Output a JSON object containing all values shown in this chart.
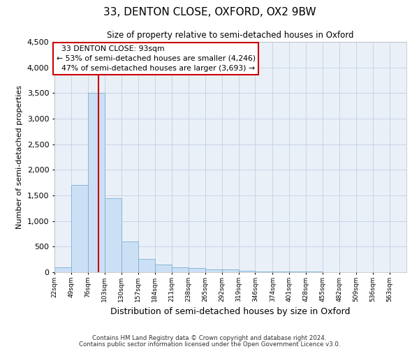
{
  "title1": "33, DENTON CLOSE, OXFORD, OX2 9BW",
  "title2": "Size of property relative to semi-detached houses in Oxford",
  "xlabel": "Distribution of semi-detached houses by size in Oxford",
  "ylabel": "Number of semi-detached properties",
  "property_label": "33 DENTON CLOSE: 93sqm",
  "pct_smaller": 53,
  "pct_larger": 47,
  "n_smaller": 4246,
  "n_larger": 3693,
  "bin_labels": [
    "22sqm",
    "49sqm",
    "76sqm",
    "103sqm",
    "130sqm",
    "157sqm",
    "184sqm",
    "211sqm",
    "238sqm",
    "265sqm",
    "292sqm",
    "319sqm",
    "346sqm",
    "374sqm",
    "401sqm",
    "428sqm",
    "455sqm",
    "482sqm",
    "509sqm",
    "536sqm",
    "563sqm"
  ],
  "bin_left_edges": [
    22,
    49,
    76,
    103,
    130,
    157,
    184,
    211,
    238,
    265,
    292,
    319,
    346,
    374,
    401,
    428,
    455,
    482,
    509,
    536,
    563
  ],
  "bar_heights": [
    100,
    1700,
    3500,
    1450,
    600,
    260,
    150,
    100,
    80,
    60,
    50,
    30,
    20,
    15,
    10,
    8,
    5,
    4,
    3,
    2,
    0
  ],
  "bar_color": "#cce0f5",
  "bar_edge_color": "#7ab0d4",
  "vline_x": 93,
  "vline_color": "#cc0000",
  "ylim": [
    0,
    4500
  ],
  "yticks": [
    0,
    500,
    1000,
    1500,
    2000,
    2500,
    3000,
    3500,
    4000,
    4500
  ],
  "grid_color": "#c8d4e8",
  "bg_color": "#eaf0f8",
  "box_color": "#cc0000",
  "footer1": "Contains HM Land Registry data © Crown copyright and database right 2024.",
  "footer2": "Contains public sector information licensed under the Open Government Licence v3.0."
}
